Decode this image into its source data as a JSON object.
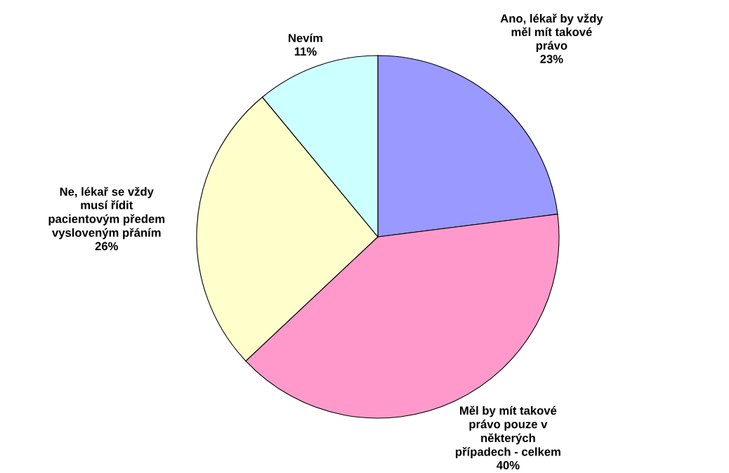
{
  "chart_data": {
    "type": "pie",
    "categories": [
      "Ano, lékař by vždy měl mít takové právo",
      "Měl by mít takové právo pouze v některých případech - celkem",
      "Ne, lékař se vždy musí řídit pacientovým předem vysloveným přáním",
      "Nevím"
    ],
    "values": [
      23,
      40,
      26,
      11
    ],
    "value_labels": [
      "23%",
      "40%",
      "26%",
      "11%"
    ],
    "colors": [
      "#9999ff",
      "#ff99cc",
      "#ffffcc",
      "#ccffff"
    ]
  }
}
